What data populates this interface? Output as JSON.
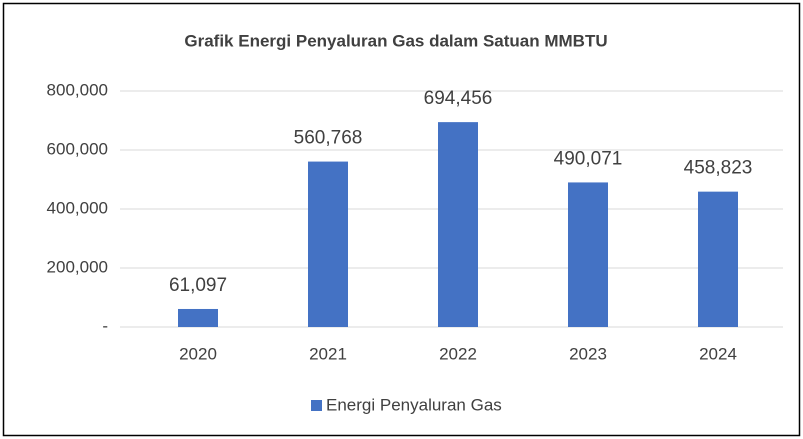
{
  "chart_data": {
    "type": "bar",
    "title": "Grafik Energi Penyaluran Gas dalam Satuan MMBTU",
    "categories": [
      "2020",
      "2021",
      "2022",
      "2023",
      "2024"
    ],
    "series": [
      {
        "name": "Energi Penyaluran Gas",
        "color": "#4472c4",
        "values": [
          61097,
          560768,
          694456,
          490071,
          458823
        ],
        "value_labels": [
          "61,097",
          "560,768",
          "694,456",
          "490,071",
          "458,823"
        ]
      }
    ],
    "ylim": [
      0,
      800000
    ],
    "yticks": [
      {
        "value": 0,
        "label": "-"
      },
      {
        "value": 200000,
        "label": "200,000"
      },
      {
        "value": 400000,
        "label": "400,000"
      },
      {
        "value": 600000,
        "label": "600,000"
      },
      {
        "value": 800000,
        "label": "800,000"
      }
    ],
    "grid": true,
    "legend": "bottom"
  }
}
